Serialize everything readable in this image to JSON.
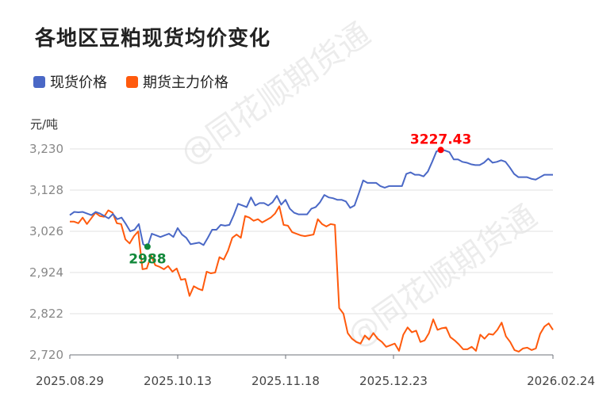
{
  "title": "各地区豆粕现货均价变化",
  "legend": [
    {
      "label": "现货价格",
      "color": "#4A68C6"
    },
    {
      "label": "期货主力价格",
      "color": "#FF5A0D"
    }
  ],
  "unit": "元/吨",
  "watermark": "@同花顺期货通",
  "chart_data": {
    "type": "line",
    "title": "各地区豆粕现货均价变化",
    "xlabel": "",
    "ylabel": "元/吨",
    "ylim": [
      2720,
      3230
    ],
    "yticks": [
      "3,230",
      "3,128",
      "3,026",
      "2,924",
      "2,822",
      "2,720"
    ],
    "xticks": [
      "2025.08.29",
      "2025.10.13",
      "2025.11.18",
      "2025.12.23",
      "2026.02.24"
    ],
    "grid": true,
    "legend_position": "top-left",
    "annotations": [
      {
        "series": "现货价格",
        "label": "3227.43",
        "color": "#FF0000",
        "type": "max"
      },
      {
        "series": "现货价格",
        "label": "2988",
        "color": "#11883A",
        "type": "min"
      }
    ],
    "series": [
      {
        "name": "现货价格",
        "color": "#4A68C6",
        "values": [
          3066,
          3074,
          3073,
          3074,
          3070,
          3066,
          3074,
          3070,
          3064,
          3058,
          3069,
          3056,
          3060,
          3044,
          3026,
          3030,
          3044,
          2994,
          2988,
          3020,
          3016,
          3012,
          3016,
          3020,
          3012,
          3034,
          3018,
          3010,
          2994,
          2996,
          2998,
          2992,
          3010,
          3030,
          3030,
          3042,
          3040,
          3042,
          3066,
          3094,
          3090,
          3086,
          3110,
          3090,
          3096,
          3096,
          3090,
          3098,
          3114,
          3092,
          3104,
          3082,
          3072,
          3068,
          3068,
          3068,
          3082,
          3086,
          3098,
          3116,
          3110,
          3108,
          3104,
          3104,
          3100,
          3084,
          3090,
          3120,
          3152,
          3146,
          3146,
          3146,
          3138,
          3134,
          3138,
          3138,
          3138,
          3138,
          3168,
          3172,
          3166,
          3166,
          3162,
          3174,
          3198,
          3224,
          3227.43,
          3226,
          3222,
          3204,
          3204,
          3198,
          3196,
          3192,
          3190,
          3190,
          3196,
          3206,
          3196,
          3198,
          3202,
          3198,
          3184,
          3168,
          3160,
          3160,
          3160,
          3156,
          3154,
          3160,
          3166,
          3166,
          3166
        ]
      },
      {
        "name": "期货主力价格",
        "color": "#FF5A0D",
        "values": [
          3050,
          3050,
          3046,
          3060,
          3044,
          3058,
          3072,
          3064,
          3062,
          3078,
          3072,
          3046,
          3044,
          3006,
          2996,
          3014,
          3026,
          2932,
          2934,
          2966,
          2942,
          2938,
          2932,
          2940,
          2926,
          2934,
          2906,
          2908,
          2866,
          2890,
          2884,
          2880,
          2926,
          2922,
          2924,
          2962,
          2956,
          2978,
          3010,
          3018,
          3010,
          3064,
          3060,
          3052,
          3056,
          3048,
          3054,
          3060,
          3070,
          3088,
          3042,
          3040,
          3024,
          3020,
          3016,
          3014,
          3016,
          3018,
          3056,
          3044,
          3038,
          3044,
          3042,
          2836,
          2822,
          2774,
          2760,
          2752,
          2748,
          2768,
          2758,
          2774,
          2760,
          2752,
          2740,
          2744,
          2748,
          2730,
          2770,
          2788,
          2776,
          2780,
          2752,
          2756,
          2774,
          2808,
          2782,
          2786,
          2788,
          2764,
          2756,
          2746,
          2734,
          2734,
          2740,
          2730,
          2770,
          2760,
          2772,
          2770,
          2782,
          2800,
          2766,
          2752,
          2732,
          2728,
          2736,
          2738,
          2732,
          2736,
          2772,
          2790,
          2798,
          2782
        ]
      }
    ]
  }
}
